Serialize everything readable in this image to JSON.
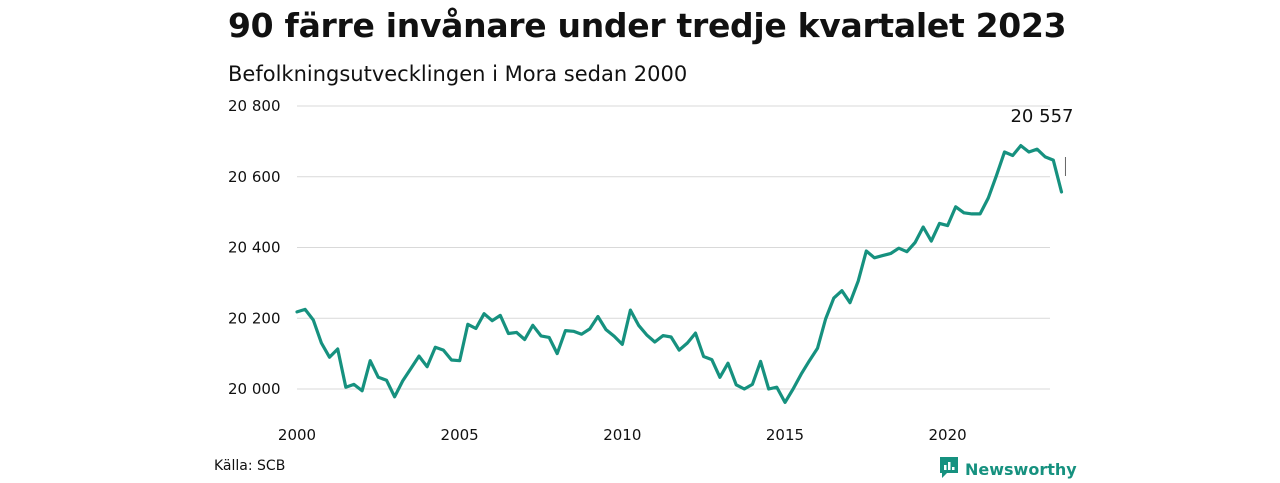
{
  "header": {
    "title": "90 färre invånare under tredje kvartalet 2023",
    "subtitle": "Befolkningsutvecklingen i Mora sedan 2000"
  },
  "footer": {
    "source": "Källa: SCB",
    "brand_name": "Newsworthy",
    "brand_icon": "newsworthy-logo-icon",
    "brand_color": "#16917f"
  },
  "chart_data": {
    "type": "line",
    "title": "90 färre invånare under tredje kvartalet 2023",
    "subtitle": "Befolkningsutvecklingen i Mora sedan 2000",
    "xlabel": "",
    "ylabel": "",
    "xlim": [
      2000,
      2024.5
    ],
    "ylim": [
      19950,
      20800
    ],
    "grid": true,
    "line_color": "#16917f",
    "y_ticks": [
      20000,
      20200,
      20400,
      20600,
      20800
    ],
    "y_tick_labels": [
      "20 000",
      "20 200",
      "20 400",
      "20 600",
      "20 800"
    ],
    "x_ticks": [
      2000,
      2005,
      2010,
      2015,
      2020
    ],
    "x_tick_labels": [
      "2000",
      "2005",
      "2010",
      "2015",
      "2020"
    ],
    "annotation": {
      "label": "20 557",
      "value": 20557
    },
    "series": [
      {
        "x": [
          2000.0,
          2000.25,
          2000.5,
          2000.75,
          2001.0,
          2001.25,
          2001.5,
          2001.75,
          2002.0,
          2002.25,
          2002.5,
          2002.75,
          2003.0,
          2003.25,
          2003.5,
          2003.75,
          2004.0,
          2004.25,
          2004.5,
          2004.75,
          2005.0,
          2005.25,
          2005.5,
          2005.75,
          2006.0,
          2006.25,
          2006.5,
          2006.75,
          2007.0,
          2007.25,
          2007.5,
          2007.75,
          2008.0,
          2008.25,
          2008.5,
          2008.75,
          2009.0,
          2009.25,
          2009.5,
          2009.75,
          2010.0,
          2010.25,
          2010.5,
          2010.75,
          2011.0,
          2011.25,
          2011.5,
          2011.75,
          2012.0,
          2012.25,
          2012.5,
          2012.75,
          2013.0,
          2013.25,
          2013.5,
          2013.75,
          2014.0,
          2014.25,
          2014.5,
          2014.75,
          2015.0,
          2015.25,
          2015.5,
          2015.75,
          2016.0,
          2016.25,
          2016.5,
          2016.75,
          2017.0,
          2017.25,
          2017.5,
          2017.75,
          2018.0,
          2018.25,
          2018.5,
          2018.75,
          2019.0,
          2019.25,
          2019.5,
          2019.75,
          2020.0,
          2020.25,
          2020.5,
          2020.75,
          2021.0,
          2021.25,
          2021.5,
          2021.75,
          2022.0,
          2022.25,
          2022.5,
          2022.75,
          2023.0,
          2023.25,
          2023.5
        ],
        "values": [
          20218,
          20225,
          20195,
          20130,
          20090,
          20113,
          20005,
          20013,
          19995,
          20080,
          20033,
          20025,
          19978,
          20023,
          20058,
          20093,
          20063,
          20118,
          20110,
          20082,
          20080,
          20183,
          20171,
          20213,
          20193,
          20208,
          20157,
          20160,
          20140,
          20180,
          20150,
          20146,
          20100,
          20165,
          20163,
          20155,
          20170,
          20205,
          20168,
          20149,
          20126,
          20223,
          20180,
          20153,
          20133,
          20151,
          20147,
          20110,
          20130,
          20158,
          20092,
          20083,
          20033,
          20073,
          20012,
          20000,
          20013,
          20078,
          20000,
          20005,
          19962,
          20000,
          20042,
          20080,
          20115,
          20198,
          20257,
          20278,
          20244,
          20305,
          20390,
          20371,
          20377,
          20383,
          20398,
          20388,
          20414,
          20458,
          20418,
          20468,
          20462,
          20515,
          20498,
          20495,
          20495,
          20540,
          20603,
          20670,
          20660,
          20688,
          20670,
          20678,
          20656,
          20647,
          20557
        ]
      }
    ]
  }
}
